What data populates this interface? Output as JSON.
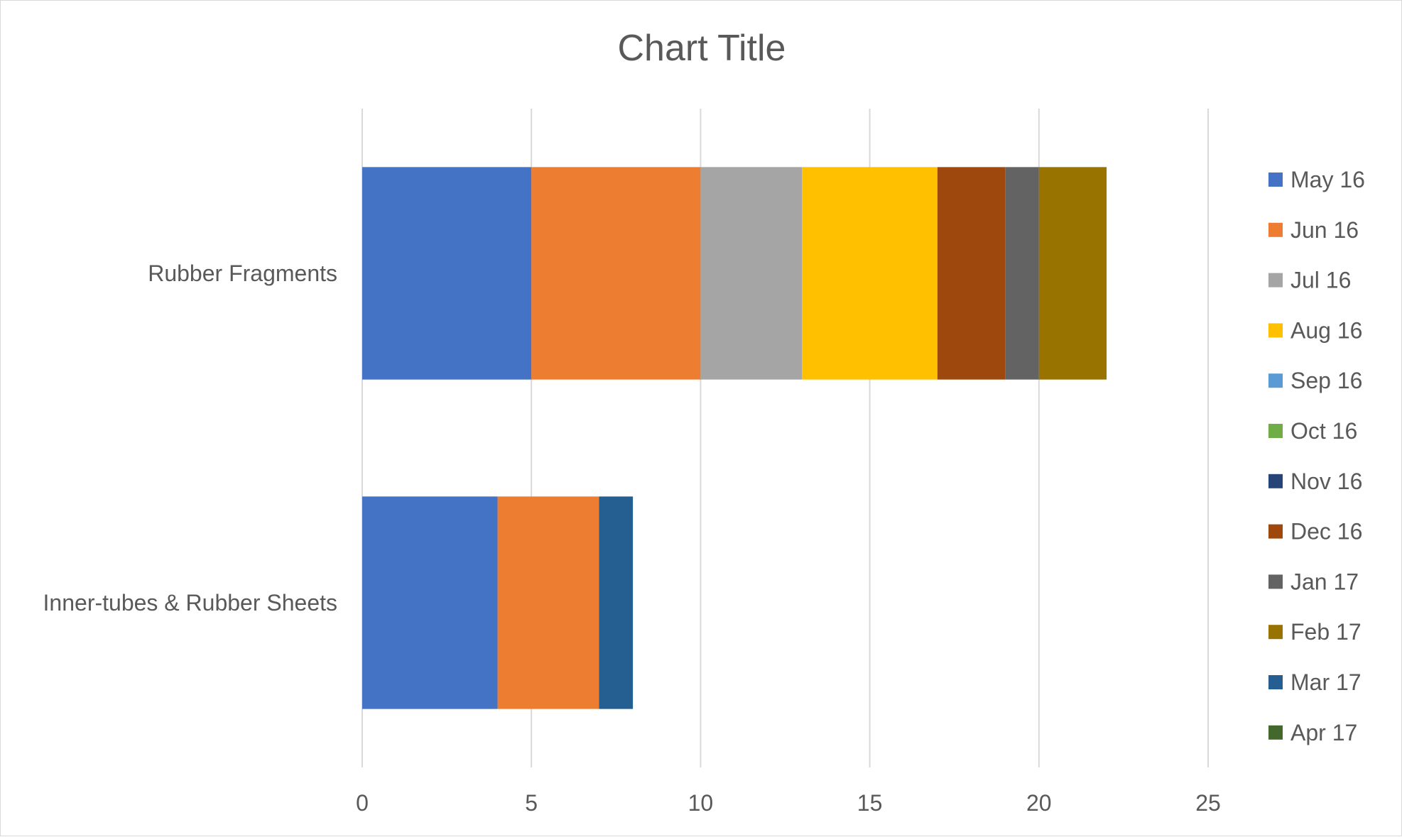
{
  "chart_data": {
    "type": "bar",
    "orientation": "horizontal",
    "stacked": true,
    "title": "Chart Title",
    "categories": [
      "Rubber Fragments",
      "Inner-tubes & Rubber Sheets"
    ],
    "xlim": [
      0,
      25
    ],
    "xticks": [
      0,
      5,
      10,
      15,
      20,
      25
    ],
    "grid": true,
    "legend_position": "right",
    "series": [
      {
        "name": "May 16",
        "color": "#4472C4",
        "values": [
          5,
          4
        ]
      },
      {
        "name": "Jun 16",
        "color": "#ED7D31",
        "values": [
          5,
          3
        ]
      },
      {
        "name": "Jul 16",
        "color": "#A5A5A5",
        "values": [
          3,
          0
        ]
      },
      {
        "name": "Aug 16",
        "color": "#FFC000",
        "values": [
          4,
          0
        ]
      },
      {
        "name": "Sep 16",
        "color": "#5B9BD5",
        "values": [
          0,
          0
        ]
      },
      {
        "name": "Oct 16",
        "color": "#70AD47",
        "values": [
          0,
          0
        ]
      },
      {
        "name": "Nov 16",
        "color": "#264478",
        "values": [
          0,
          0
        ]
      },
      {
        "name": "Dec 16",
        "color": "#9E480E",
        "values": [
          2,
          0
        ]
      },
      {
        "name": "Jan 17",
        "color": "#636363",
        "values": [
          1,
          0
        ]
      },
      {
        "name": "Feb 17",
        "color": "#997300",
        "values": [
          2,
          0
        ]
      },
      {
        "name": "Mar 17",
        "color": "#255E91",
        "values": [
          0,
          1
        ]
      },
      {
        "name": "Apr 17",
        "color": "#43682B",
        "values": [
          0,
          0
        ]
      }
    ]
  }
}
